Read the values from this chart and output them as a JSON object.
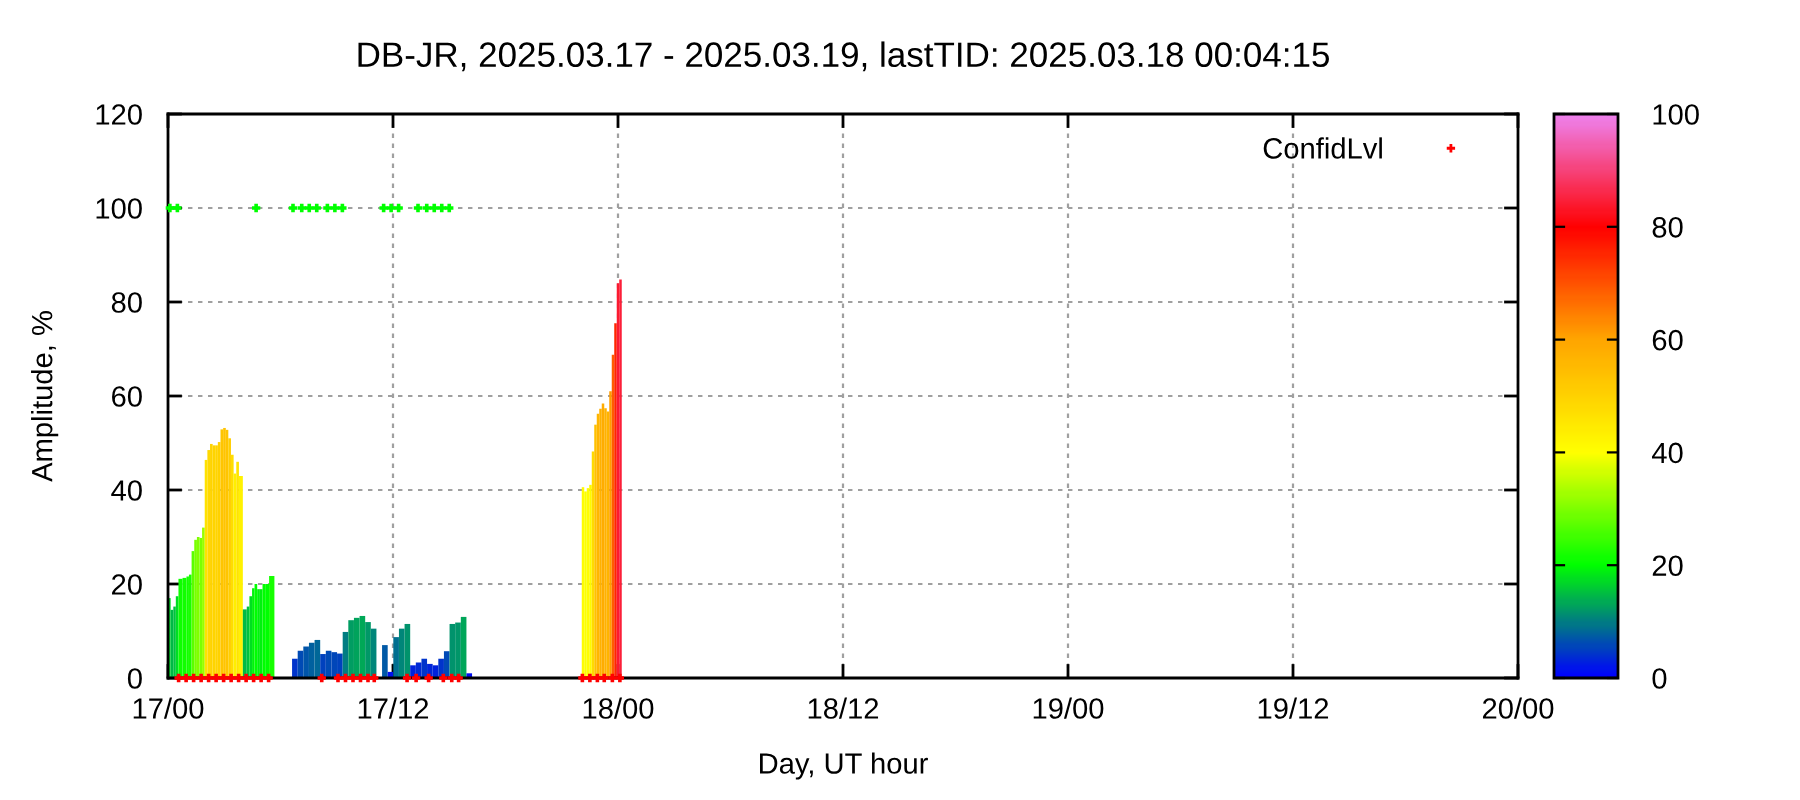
{
  "chart_data": {
    "type": "bar",
    "title": "DB-JR, 2025.03.17 - 2025.03.19, lastTID: 2025.03.18 00:04:15",
    "xlabel": "Day, UT hour",
    "ylabel": "Amplitude, %",
    "xlim": [
      "2025-03-17T00:00",
      "2025-03-20T00:00"
    ],
    "xticks": [
      {
        "value": "2025-03-17T00:00",
        "label": "17/00"
      },
      {
        "value": "2025-03-17T12:00",
        "label": "17/12"
      },
      {
        "value": "2025-03-18T00:00",
        "label": "18/00"
      },
      {
        "value": "2025-03-18T12:00",
        "label": "18/12"
      },
      {
        "value": "2025-03-19T00:00",
        "label": "19/00"
      },
      {
        "value": "2025-03-19T12:00",
        "label": "19/12"
      },
      {
        "value": "2025-03-20T00:00",
        "label": "20/00"
      }
    ],
    "ylim": [
      0,
      120
    ],
    "yticks": [
      0,
      20,
      40,
      60,
      80,
      100,
      120
    ],
    "clim": [
      0,
      100
    ],
    "cticks": [
      0,
      20,
      40,
      60,
      80,
      100
    ],
    "grid": true,
    "legend": "top right",
    "marker": "cross",
    "series": [
      {
        "x": [
          "2025-03-17T00:04",
          "2025-03-17T00:13",
          "2025-03-17T00:21",
          "2025-03-17T00:29",
          "2025-03-17T00:38",
          "2025-03-17T00:55",
          "2025-03-17T01:03",
          "2025-03-17T01:11",
          "2025-03-17T01:20",
          "2025-03-17T01:28",
          "2025-03-17T01:37",
          "2025-03-17T01:45",
          "2025-03-17T01:53",
          "2025-03-17T02:02",
          "2025-03-17T02:10",
          "2025-03-17T02:19",
          "2025-03-17T02:27",
          "2025-03-17T02:35",
          "2025-03-17T02:44",
          "2025-03-17T02:52",
          "2025-03-17T03:01",
          "2025-03-17T03:09",
          "2025-03-17T03:17",
          "2025-03-17T03:26",
          "2025-03-17T03:34",
          "2025-03-17T03:43",
          "2025-03-17T03:51",
          "2025-03-17T04:08",
          "2025-03-17T04:16",
          "2025-03-17T04:25",
          "2025-03-17T04:33",
          "2025-03-17T04:41",
          "2025-03-17T04:50",
          "2025-03-17T04:58",
          "2025-03-17T05:07",
          "2025-03-17T05:15",
          "2025-03-17T05:32",
          "2025-03-17T06:46",
          "2025-03-17T07:04",
          "2025-03-17T07:22",
          "2025-03-17T07:40",
          "2025-03-17T07:58",
          "2025-03-17T08:16",
          "2025-03-17T08:34",
          "2025-03-17T08:52",
          "2025-03-17T09:10",
          "2025-03-17T09:28",
          "2025-03-17T09:46",
          "2025-03-17T10:04",
          "2025-03-17T10:22",
          "2025-03-17T10:40",
          "2025-03-17T10:58",
          "2025-03-17T11:16",
          "2025-03-17T11:34",
          "2025-03-17T11:52",
          "2025-03-17T12:10",
          "2025-03-17T12:28",
          "2025-03-17T12:46",
          "2025-03-17T13:04",
          "2025-03-17T13:22",
          "2025-03-17T13:40",
          "2025-03-17T13:58",
          "2025-03-17T14:16",
          "2025-03-17T14:34",
          "2025-03-17T14:52",
          "2025-03-17T15:10",
          "2025-03-17T15:28",
          "2025-03-17T15:46",
          "2025-03-17T16:04",
          "2025-03-17T22:08",
          "2025-03-17T22:16",
          "2025-03-17T22:24",
          "2025-03-17T22:32",
          "2025-03-17T22:40",
          "2025-03-17T22:48",
          "2025-03-17T22:56",
          "2025-03-17T23:04",
          "2025-03-17T23:12",
          "2025-03-17T23:20",
          "2025-03-17T23:28",
          "2025-03-17T23:36",
          "2025-03-17T23:44",
          "2025-03-17T23:52",
          "2025-03-18T00:00",
          "2025-03-18T00:08"
        ],
        "values": [
          17.0,
          14.5,
          15.2,
          17.4,
          21.1,
          21.3,
          21.6,
          22.0,
          27.0,
          29.4,
          30.0,
          29.8,
          32.0,
          46.4,
          48.5,
          49.8,
          49.5,
          49.5,
          50.2,
          52.9,
          53.2,
          52.8,
          51.0,
          47.5,
          43.5,
          46.0,
          43.0,
          14.6,
          15.2,
          17.4,
          19.1,
          20.0,
          18.9,
          18.9,
          20.0,
          20.0,
          21.7,
          4.1,
          5.8,
          6.7,
          7.5,
          8.1,
          5.1,
          5.8,
          5.5,
          5.2,
          9.8,
          12.3,
          12.8,
          13.2,
          11.9,
          10.5,
          null,
          7.0,
          1.3,
          8.7,
          10.5,
          11.5,
          2.7,
          3.3,
          4.1,
          3.0,
          2.7,
          4.1,
          5.7,
          11.5,
          11.8,
          13.0,
          1.0,
          40.6,
          39.7,
          40.4,
          41.1,
          48.2,
          53.9,
          56.2,
          57.3,
          58.4,
          57.4,
          56.7,
          61.0,
          68.8,
          75.5,
          84.0,
          84.8
        ],
        "colors": [
          "#00d926",
          "#00b946",
          "#00c23d",
          "#00de21",
          "#0eff00",
          "#11ff00",
          "#14ff00",
          "#1aff00",
          "#59ff00",
          "#78ff00",
          "#80ff00",
          "#7dff00",
          "#99ff00",
          "#ffe200",
          "#ffd900",
          "#ffd300",
          "#ffd400",
          "#ffd400",
          "#ffd100",
          "#ffc500",
          "#ffc400",
          "#ffc500",
          "#ffce00",
          "#ffdd00",
          "#ffef00",
          "#ffe400",
          "#fff200",
          "#00ba45",
          "#00c23d",
          "#00de21",
          "#00f40b",
          "#00ff00",
          "#00f10e",
          "#00f10e",
          "#00ff00",
          "#00ff00",
          "#16ff00",
          "#0034cb",
          "#004ab5",
          "#0055aa",
          "#00609f",
          "#006798",
          "#0041be",
          "#004ab5",
          "#0046b9",
          "#0042bd",
          "#007d82",
          "#009d62",
          "#00a35c",
          "#00a857",
          "#009867",
          "#008679",
          null,
          "#0059a6",
          "#0011ee",
          "#006f90",
          "#008679",
          "#00936c",
          "#0022dd",
          "#002ad5",
          "#0034cb",
          "#0026d9",
          "#0022dd",
          "#0034cb",
          "#0049b6",
          "#00936c",
          "#009669",
          "#00a659",
          "#000df2",
          "#fffc00",
          "#fbff00",
          "#fffd00",
          "#fffa00",
          "#ffda00",
          "#ffc000",
          "#ffb600",
          "#ffb100",
          "#ffac00",
          "#ffb100",
          "#ffb400",
          "#ff9d00",
          "#ff5c00",
          "#ff2500",
          "#fc1a30",
          "#fb1f39"
        ]
      },
      {
        "type": "scatter",
        "name": "ConfidLvl",
        "color": "#ff0000",
        "x": [
          "2025-03-17T00:34",
          "2025-03-17T00:58",
          "2025-03-17T01:22",
          "2025-03-17T01:46",
          "2025-03-17T02:10",
          "2025-03-17T02:34",
          "2025-03-17T02:58",
          "2025-03-17T03:22",
          "2025-03-17T03:46",
          "2025-03-17T04:10",
          "2025-03-17T04:34",
          "2025-03-17T04:58",
          "2025-03-17T05:22",
          "2025-03-17T08:12",
          "2025-03-17T09:04",
          "2025-03-17T09:28",
          "2025-03-17T09:52",
          "2025-03-17T10:16",
          "2025-03-17T10:40",
          "2025-03-17T11:00",
          "2025-03-17T12:45",
          "2025-03-17T13:14",
          "2025-03-17T13:54",
          "2025-03-17T14:41",
          "2025-03-17T15:08",
          "2025-03-17T15:30",
          "2025-03-17T22:06",
          "2025-03-17T22:30",
          "2025-03-17T22:54",
          "2025-03-17T23:16",
          "2025-03-17T23:42",
          "2025-03-18T00:06"
        ],
        "values": [
          0,
          0,
          0,
          0,
          0,
          0,
          0,
          0,
          0,
          0,
          0,
          0,
          0,
          0,
          0,
          0,
          0,
          0,
          0,
          0,
          0,
          0,
          0,
          0,
          0,
          0,
          0,
          0,
          0,
          0,
          0,
          0
        ]
      },
      {
        "type": "scatter",
        "color": "#00ff00",
        "x": [
          "2025-03-17T00:06",
          "2025-03-17T00:30",
          "2025-03-17T04:42",
          "2025-03-17T06:40",
          "2025-03-17T07:08",
          "2025-03-17T07:32",
          "2025-03-17T07:56",
          "2025-03-17T08:30",
          "2025-03-17T08:54",
          "2025-03-17T09:18",
          "2025-03-17T11:30",
          "2025-03-17T11:54",
          "2025-03-17T12:18",
          "2025-03-17T13:20",
          "2025-03-17T13:48",
          "2025-03-17T14:12",
          "2025-03-17T14:36",
          "2025-03-17T15:00"
        ],
        "values": [
          100,
          100,
          100,
          100,
          100,
          100,
          100,
          100,
          100,
          100,
          100,
          100,
          100,
          100,
          100,
          100,
          100,
          100
        ]
      }
    ]
  }
}
